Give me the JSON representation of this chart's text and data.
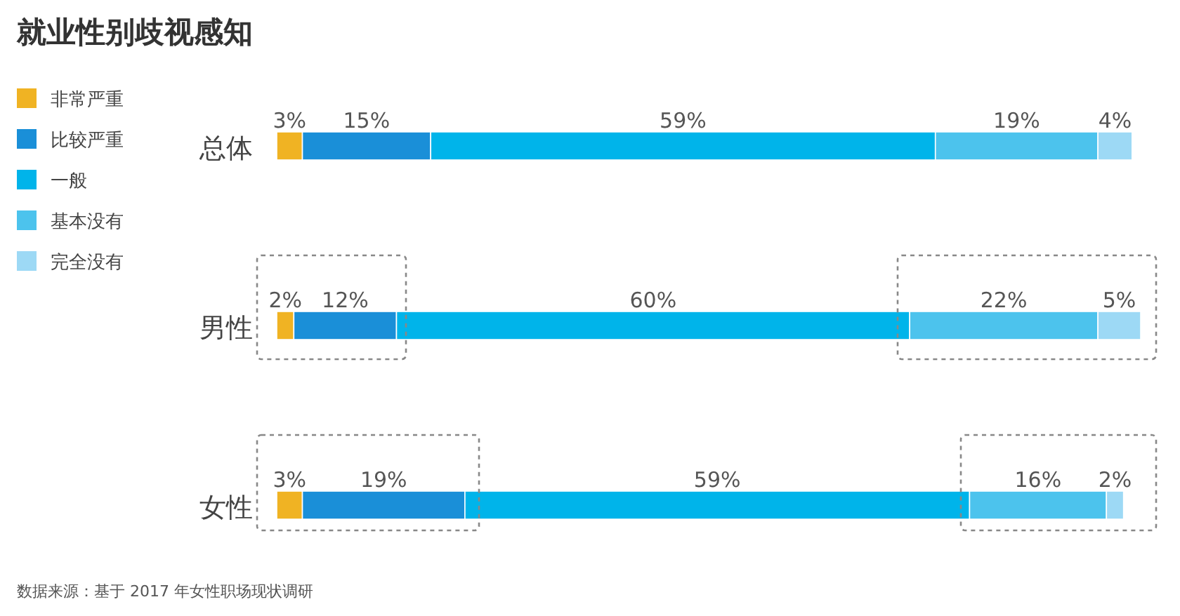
{
  "chart_data": {
    "type": "bar",
    "orientation": "horizontal",
    "stacked": true,
    "title": "就业性别歧视感知",
    "categories": [
      "总体",
      "男性",
      "女性"
    ],
    "series": [
      {
        "name": "非常严重",
        "color": "#f0b323",
        "values": [
          3,
          2,
          3
        ],
        "value_labels": [
          "3%",
          "2%",
          "3%"
        ]
      },
      {
        "name": "比较严重",
        "color": "#1a8fd8",
        "values": [
          15,
          12,
          19
        ],
        "value_labels": [
          "15%",
          "12%",
          "19%"
        ]
      },
      {
        "name": "一般",
        "color": "#00b4ea",
        "values": [
          59,
          60,
          59
        ],
        "value_labels": [
          "59%",
          "60%",
          "59%"
        ]
      },
      {
        "name": "基本没有",
        "color": "#4cc3ed",
        "values": [
          19,
          22,
          16
        ],
        "value_labels": [
          "19%",
          "22%",
          "16%"
        ]
      },
      {
        "name": "完全没有",
        "color": "#9dd9f5",
        "values": [
          4,
          5,
          2
        ],
        "value_labels": [
          "4%",
          "5%",
          "2%"
        ]
      }
    ],
    "legend": "left",
    "annotations": [
      "数据来源：基于 2017 年女性职场现状调研"
    ]
  }
}
